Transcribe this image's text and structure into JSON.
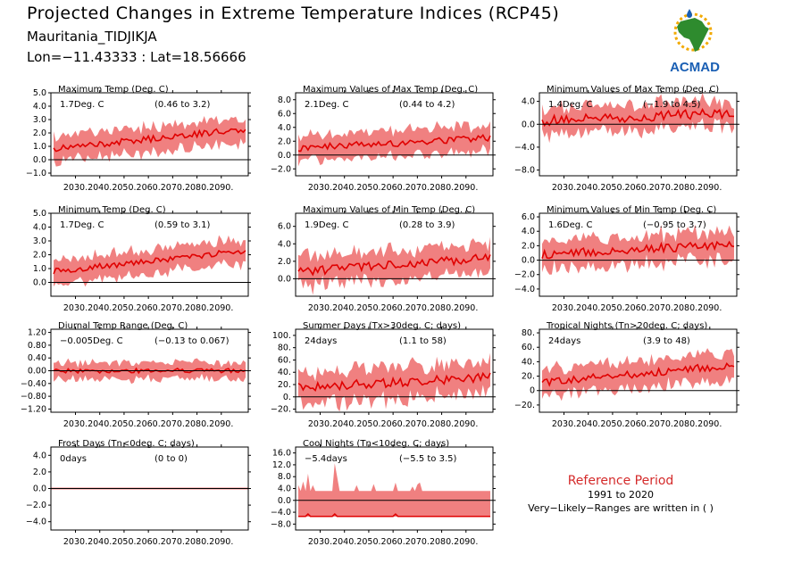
{
  "header": {
    "title": "Projected Changes in Extreme Temperature Indices (RCP45)",
    "station": "Mauritania_TIDJIKJA",
    "coords": "Lon=−11.43333 : Lat=18.56666"
  },
  "logo": {
    "text": "ACMAD",
    "colors": {
      "africa": "#2e8b2e",
      "text": "#1a5fb4",
      "sun": "#f2a900"
    }
  },
  "reference": {
    "title": "Reference Period",
    "years": "1991 to 2020",
    "note": "Very−Likely−Ranges are written in ( )"
  },
  "colors": {
    "band": "#f08080",
    "line": "#e00000",
    "zero": "#000000"
  },
  "chart_data": [
    {
      "type": "area",
      "title": "Maximum Temp (Deg. C)",
      "mean_label": "1.7Deg. C",
      "range_label": "(0.46 to 3.2)",
      "ylim": [
        -1.2,
        5.0
      ],
      "yticks": [
        5.0,
        4.0,
        3.0,
        2.0,
        1.0,
        0.0,
        -1.0
      ],
      "ytick_labels": [
        "5.0",
        "4.0",
        "3.0",
        "2.0",
        "1.0",
        "0.0",
        "−1.0"
      ],
      "x_start": 2021,
      "x_end": 2100,
      "xticks": [
        "2030.",
        "2040.",
        "2050.",
        "2060.",
        "2070.",
        "2080.",
        "2090."
      ],
      "mean": [
        0.8,
        2.3
      ],
      "spread": 1.1,
      "noise": 0.4
    },
    {
      "type": "area",
      "title": "Maximum Values of Max Temp (Deg. C)",
      "mean_label": "2.1Deg. C",
      "range_label": "(0.44 to 4.2)",
      "ylim": [
        -3.0,
        9.0
      ],
      "yticks": [
        8.0,
        6.0,
        4.0,
        2.0,
        0.0,
        -2.0
      ],
      "ytick_labels": [
        "8.0",
        "6.0",
        "4.0",
        "2.0",
        "0.0",
        "−2.0"
      ],
      "x_start": 2021,
      "x_end": 2100,
      "xticks": [
        "2030.",
        "2040.",
        "2050.",
        "2060.",
        "2070.",
        "2080.",
        "2090."
      ],
      "mean": [
        1.0,
        2.5
      ],
      "spread": 2.2,
      "noise": 0.9
    },
    {
      "type": "area",
      "title": "Minimum Values of Max Temp (Deg. C)",
      "mean_label": "1.4Deg. C",
      "range_label": "(−1.9 to 4.5)",
      "ylim": [
        -9.0,
        5.5
      ],
      "yticks": [
        4.0,
        0.0,
        -4.0,
        -8.0
      ],
      "ytick_labels": [
        "4.0",
        "0.0",
        "−4.0",
        "−8.0"
      ],
      "x_start": 2021,
      "x_end": 2100,
      "xticks": [
        "2030.",
        "2040.",
        "2050.",
        "2060.",
        "2070.",
        "2080.",
        "2090."
      ],
      "mean": [
        0.6,
        2.0
      ],
      "spread": 2.6,
      "noise": 1.4
    },
    {
      "type": "area",
      "title": "Minimum Temp (Deg. C)",
      "mean_label": "1.7Deg. C",
      "range_label": "(0.59 to 3.1)",
      "ylim": [
        -1.0,
        5.0
      ],
      "yticks": [
        5.0,
        4.0,
        3.0,
        2.0,
        1.0,
        0.0
      ],
      "ytick_labels": [
        "5.0",
        "4.0",
        "3.0",
        "2.0",
        "1.0",
        "0.0"
      ],
      "x_start": 2021,
      "x_end": 2100,
      "xticks": [
        "2030.",
        "2040.",
        "2050.",
        "2060.",
        "2070.",
        "2080.",
        "2090."
      ],
      "mean": [
        0.8,
        2.3
      ],
      "spread": 1.0,
      "noise": 0.35
    },
    {
      "type": "area",
      "title": "Maximum Values of Min Temp (Deg. C)",
      "mean_label": "1.9Deg. C",
      "range_label": "(0.28 to 3.9)",
      "ylim": [
        -2.0,
        7.5
      ],
      "yticks": [
        6.0,
        4.0,
        2.0,
        0.0
      ],
      "ytick_labels": [
        "6.0",
        "4.0",
        "2.0",
        "0.0"
      ],
      "x_start": 2021,
      "x_end": 2100,
      "xticks": [
        "2030.",
        "2040.",
        "2050.",
        "2060.",
        "2070.",
        "2080.",
        "2090."
      ],
      "mean": [
        0.8,
        2.4
      ],
      "spread": 2.0,
      "noise": 0.8
    },
    {
      "type": "area",
      "title": "Minimum Values of Min Temp (Deg. C)",
      "mean_label": "1.6Deg. C",
      "range_label": "(−0.95 to 3.7)",
      "ylim": [
        -5.0,
        6.5
      ],
      "yticks": [
        6.0,
        4.0,
        2.0,
        0.0,
        -2.0,
        -4.0
      ],
      "ytick_labels": [
        "6.0",
        "4.0",
        "2.0",
        "0.0",
        "−2.0",
        "−4.0"
      ],
      "x_start": 2021,
      "x_end": 2100,
      "xticks": [
        "2030.",
        "2040.",
        "2050.",
        "2060.",
        "2070.",
        "2080.",
        "2090."
      ],
      "mean": [
        0.8,
        2.2
      ],
      "spread": 2.3,
      "noise": 1.0
    },
    {
      "type": "area",
      "title": "Diurnal Temp Range (Deg. C)",
      "mean_label": "−0.005Deg. C",
      "range_label": "(−0.13 to 0.067)",
      "ylim": [
        -1.3,
        1.3
      ],
      "yticks": [
        1.2,
        0.8,
        0.4,
        0.0,
        -0.4,
        -0.8,
        -1.2
      ],
      "ytick_labels": [
        "1.20",
        "0.80",
        "0.40",
        "0.00",
        "−0.40",
        "−0.80",
        "−1.20"
      ],
      "x_start": 2021,
      "x_end": 2100,
      "xticks": [
        "2030.",
        "2040.",
        "2050.",
        "2060.",
        "2070.",
        "2080.",
        "2090."
      ],
      "mean": [
        0.0,
        0.0
      ],
      "spread": 0.3,
      "noise": 0.12
    },
    {
      "type": "area",
      "title": "Summer Days (Tx>30deg. C; days)",
      "mean_label": "24days",
      "range_label": "(1.1 to 58)",
      "ylim": [
        -25,
        110
      ],
      "yticks": [
        100,
        80,
        60,
        40,
        20,
        0,
        -20
      ],
      "ytick_labels": [
        "100.",
        "80.",
        "60.",
        "40.",
        "20.",
        "0.",
        "−20."
      ],
      "x_start": 2021,
      "x_end": 2100,
      "xticks": [
        "2030.",
        "2040.",
        "2050.",
        "2060.",
        "2070.",
        "2080.",
        "2090."
      ],
      "mean": [
        15,
        32
      ],
      "spread": 30,
      "noise": 12
    },
    {
      "type": "area",
      "title": "Tropical Nights (Tn>20deg. C; days)",
      "mean_label": "24days",
      "range_label": "(3.9 to 48)",
      "ylim": [
        -30,
        85
      ],
      "yticks": [
        80,
        60,
        40,
        20,
        0,
        -20
      ],
      "ytick_labels": [
        "80.",
        "60.",
        "40.",
        "20.",
        "0",
        "−20."
      ],
      "x_start": 2021,
      "x_end": 2100,
      "xticks": [
        "2030.",
        "2040.",
        "2050.",
        "2060.",
        "2070.",
        "2080.",
        "2090."
      ],
      "mean": [
        12,
        35
      ],
      "spread": 22,
      "noise": 9
    },
    {
      "type": "area",
      "title": "Frost Days (Tn<0deg. C; days)",
      "mean_label": "0days",
      "range_label": "(0 to 0)",
      "ylim": [
        -5,
        5
      ],
      "yticks": [
        4.0,
        2.0,
        0.0,
        -2.0,
        -4.0
      ],
      "ytick_labels": [
        "4.0",
        "2.0",
        "0.0",
        "−2.0",
        "−4.0"
      ],
      "x_start": 2021,
      "x_end": 2100,
      "xticks": [
        "2030.",
        "2040.",
        "2050.",
        "2060.",
        "2070.",
        "2080.",
        "2090."
      ],
      "mean": [
        0,
        0
      ],
      "spread": 0,
      "noise": 0
    },
    {
      "type": "area",
      "title": "Cool Nights (Tn<10deg. C; days)",
      "mean_label": "−5.4days",
      "range_label": "(−5.5 to 3.5)",
      "ylim": [
        -10,
        18
      ],
      "yticks": [
        16,
        12,
        8,
        4,
        0,
        -4,
        -8
      ],
      "ytick_labels": [
        "16.0",
        "12.0",
        "8.0",
        "4.0",
        "0.0",
        "−4.0",
        "−8.0"
      ],
      "x_start": 2021,
      "x_end": 2100,
      "xticks": [
        "2030.",
        "2040.",
        "2050.",
        "2060.",
        "2070.",
        "2080.",
        "2090."
      ],
      "mean": [
        -5.4,
        -5.4
      ],
      "spread": 0,
      "noise": 0,
      "cool": true
    }
  ]
}
